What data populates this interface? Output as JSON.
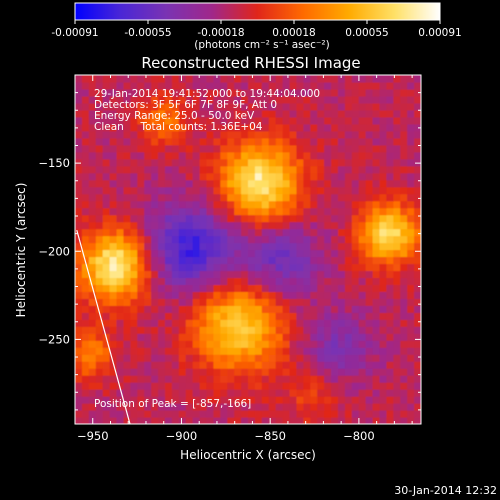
{
  "chart_data": {
    "type": "heatmap",
    "title": "Reconstructed RHESSI Image",
    "xlabel": "Heliocentric X (arcsec)",
    "ylabel": "Heliocentric Y (arcsec)",
    "xlim": [
      -960,
      -765
    ],
    "ylim": [
      -298,
      -100
    ],
    "x_ticks": [
      "-950",
      "-900",
      "-850",
      "-800"
    ],
    "y_ticks": [
      "-150",
      "-200",
      "-250"
    ],
    "colorbar": {
      "ticks": [
        "-0.00091",
        "-0.00055",
        "-0.00018",
        "0.00018",
        "0.00055",
        "0.00091"
      ],
      "units": "(photons cm⁻² s⁻¹ asec⁻²)",
      "range": [
        -0.00091,
        0.00091
      ],
      "colormap": [
        "#0000ff",
        "#4a26d6",
        "#7a33b3",
        "#a0278a",
        "#e0261a",
        "#ff6a00",
        "#ffaa00",
        "#ffe066",
        "#ffffff"
      ]
    },
    "info_lines": [
      "29-Jan-2014 19:41:52.000 to 19:44:04.000",
      "Detectors: 3F 5F 6F 7F 8F 9F, Att 0",
      "Energy Range: 25.0 - 50.0 keV",
      "Clean     Total counts: 1.36E+04"
    ],
    "peak_label": "Position of Peak = [-857,-166]",
    "peak_position": [
      -857,
      -166
    ],
    "limb_line": [
      [
        -959,
        -188
      ],
      [
        -929,
        -298
      ]
    ],
    "sources": [
      {
        "x": -937,
        "y": -208,
        "value": 0.00091
      },
      {
        "x": -856,
        "y": -161,
        "value": 0.00089
      },
      {
        "x": -783,
        "y": -190,
        "value": 0.0008
      },
      {
        "x": -868,
        "y": -242,
        "value": 0.00075
      },
      {
        "x": -952,
        "y": -258,
        "value": 0.0004
      },
      {
        "x": -910,
        "y": -125,
        "value": 0.00035
      },
      {
        "x": -826,
        "y": -281,
        "value": 0.0002
      },
      {
        "x": -895,
        "y": -198,
        "value": -0.0006
      },
      {
        "x": -845,
        "y": -205,
        "value": -0.0004
      },
      {
        "x": -812,
        "y": -255,
        "value": -0.0003
      }
    ]
  },
  "footer": {
    "timestamp": "30-Jan-2014 12:32"
  }
}
